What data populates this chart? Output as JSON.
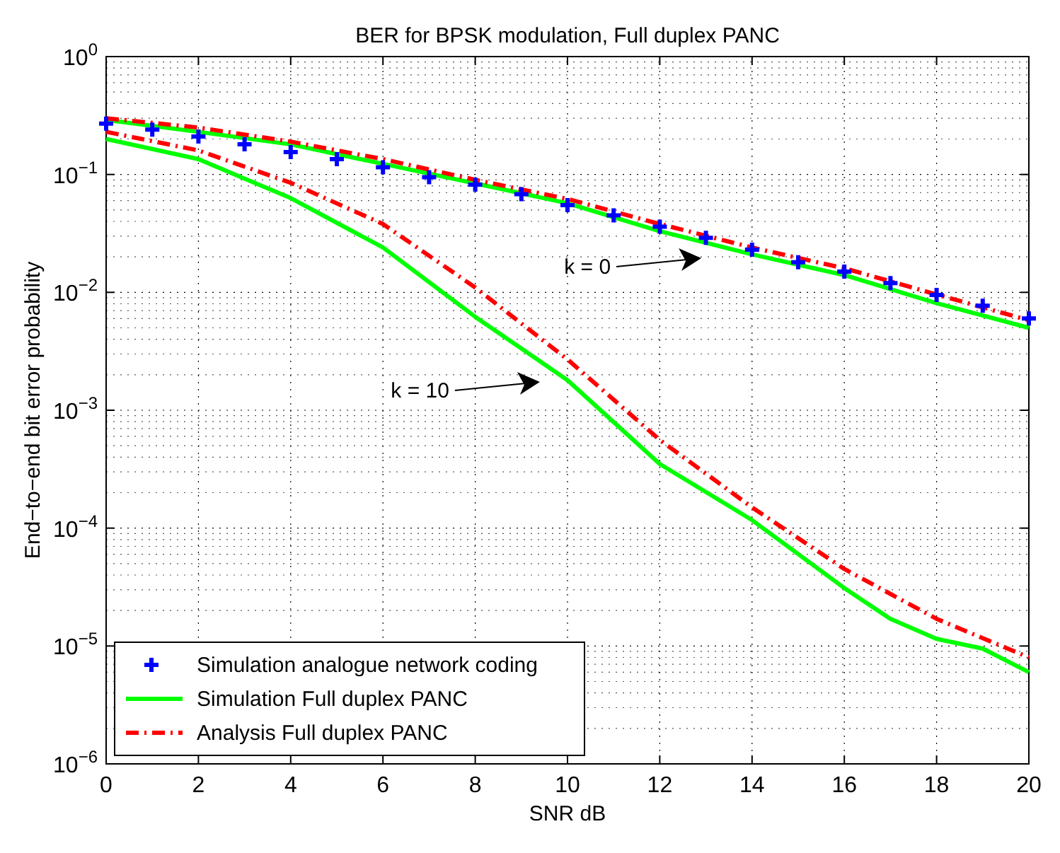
{
  "chart_data": {
    "type": "line",
    "title": "BER for BPSK modulation, Full duplex PANC",
    "xlabel": "SNR dB",
    "ylabel": "End−to−end bit error probability",
    "log": "y",
    "grid": true,
    "legend": "bottom left",
    "xlim": [
      0,
      20
    ],
    "xticks": [
      0,
      2,
      4,
      6,
      8,
      10,
      12,
      14,
      16,
      18,
      20
    ],
    "ylim": [
      1e-06,
      1
    ],
    "yticks": [
      {
        "value": 1e-06,
        "label": "10$^{−6}$"
      },
      {
        "value": 1e-05,
        "label": "10$^{−5}$"
      },
      {
        "value": 0.0001,
        "label": "10$^{−4}$"
      },
      {
        "value": 0.001,
        "label": "10$^{−3}$"
      },
      {
        "value": 0.01,
        "label": "10$^{−2}$"
      },
      {
        "value": 0.1,
        "label": "10$^{−1}$"
      },
      {
        "value": 1,
        "label": "10$^{0}$"
      }
    ],
    "annotations": [
      "k = 0",
      "k = 10"
    ],
    "series": [
      {
        "name": "Simulation analogue network coding",
        "type": "scatter",
        "marker": "cross",
        "color": "#0000ff",
        "x": [
          0,
          1,
          2,
          3,
          4,
          5,
          6,
          7,
          8,
          9,
          10,
          11,
          12,
          13,
          14,
          15,
          16,
          17,
          18,
          19,
          20
        ],
        "values": [
          0.27,
          0.24,
          0.21,
          0.18,
          0.155,
          0.135,
          0.115,
          0.095,
          0.082,
          0.068,
          0.055,
          0.045,
          0.036,
          0.029,
          0.023,
          0.018,
          0.015,
          0.012,
          0.0095,
          0.0077,
          0.006
        ]
      },
      {
        "name": "Simulation Full duplex PANC",
        "line_style": "solid",
        "color": "#00ff00",
        "x": [
          0,
          2,
          4,
          6,
          8,
          10,
          12,
          14,
          16,
          18,
          20
        ],
        "values": [
          0.29,
          0.23,
          0.18,
          0.123,
          0.084,
          0.057,
          0.033,
          0.021,
          0.014,
          0.0081,
          0.005
        ]
      },
      {
        "name": "Analysis Full duplex PANC",
        "line_style": "dashed",
        "color": "#ff0000",
        "x": [
          0,
          2,
          4,
          6,
          8,
          10,
          12,
          14,
          16,
          18,
          20
        ],
        "values": [
          0.3,
          0.25,
          0.19,
          0.135,
          0.09,
          0.062,
          0.038,
          0.024,
          0.016,
          0.0096,
          0.0058
        ]
      },
      {
        "line_style": "solid",
        "color": "#00ff00",
        "x": [
          0,
          2,
          4,
          6,
          8,
          10,
          12,
          14,
          16,
          17,
          18,
          19,
          20
        ],
        "values": [
          0.2,
          0.135,
          0.063,
          0.024,
          0.0062,
          0.0018,
          0.00035,
          0.000117,
          3.1e-05,
          1.7e-05,
          1.15e-05,
          9.5e-06,
          6e-06
        ]
      },
      {
        "line_style": "dashed",
        "color": "#ff0000",
        "x": [
          0,
          2,
          4,
          6,
          8,
          10,
          12,
          14,
          16,
          18,
          20
        ],
        "values": [
          0.23,
          0.16,
          0.085,
          0.038,
          0.011,
          0.0027,
          0.00056,
          0.00015,
          4.5e-05,
          1.7e-05,
          8e-06
        ]
      }
    ]
  }
}
